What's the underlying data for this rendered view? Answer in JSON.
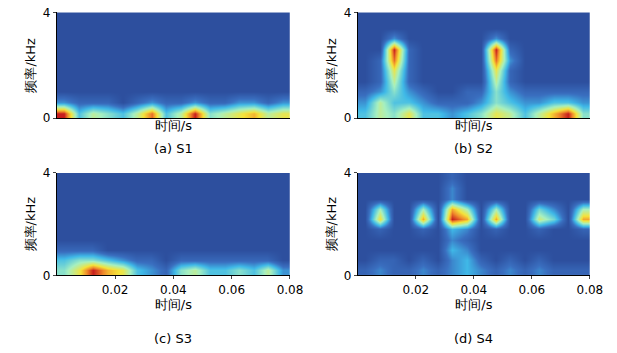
{
  "chart_data": [
    {
      "type": "heatmap",
      "title": "(a) S1",
      "x_label": "时间/s",
      "y_label": "频率/kHz",
      "xlim": [
        0,
        0.08
      ],
      "ylim": [
        0,
        4
      ],
      "yticks": [
        0,
        4
      ],
      "tick_labels": "y",
      "x": [
        0.0025,
        0.0075,
        0.0125,
        0.0175,
        0.0225,
        0.0275,
        0.0325,
        0.0375,
        0.0425,
        0.0475,
        0.0525,
        0.0575,
        0.0625,
        0.0675,
        0.0725,
        0.0775
      ],
      "y": [
        0.2,
        0.6,
        1.0,
        1.4,
        1.8,
        2.2,
        2.6,
        3.0,
        3.4,
        3.8
      ],
      "z": [
        [
          9,
          3,
          5,
          4,
          3,
          5,
          8,
          3,
          5,
          9,
          4,
          5,
          6,
          7,
          5,
          6
        ],
        [
          2,
          1,
          1,
          1,
          0,
          1,
          2,
          1,
          1,
          2,
          1,
          1,
          2,
          2,
          1,
          2
        ],
        [
          0,
          0,
          0,
          0,
          0,
          0,
          0,
          0,
          0,
          0,
          0,
          0,
          0,
          0,
          0,
          0
        ],
        [
          0,
          0,
          0,
          0,
          0,
          0,
          0,
          0,
          0,
          0,
          0,
          0,
          0,
          0,
          0,
          0
        ],
        [
          0,
          0,
          0,
          0,
          0,
          0,
          0,
          0,
          0,
          0,
          0,
          0,
          0,
          0,
          0,
          0
        ],
        [
          0,
          0,
          0,
          0,
          0,
          0,
          0,
          0,
          0,
          0,
          0,
          0,
          0,
          0,
          0,
          0
        ],
        [
          0,
          0,
          0,
          0,
          0,
          0,
          0,
          0,
          0,
          0,
          0,
          0,
          0,
          0,
          0,
          0
        ],
        [
          0,
          0,
          0,
          0,
          0,
          0,
          0,
          0,
          0,
          0,
          0,
          0,
          0,
          0,
          0,
          0
        ],
        [
          0,
          0,
          0,
          0,
          0,
          0,
          0,
          0,
          0,
          0,
          0,
          0,
          0,
          0,
          0,
          0
        ],
        [
          0,
          0,
          0,
          0,
          0,
          0,
          0,
          0,
          0,
          0,
          0,
          0,
          0,
          0,
          0,
          0
        ]
      ]
    },
    {
      "type": "heatmap",
      "title": "(b) S2",
      "x_label": "时间/s",
      "y_label": "频率/kHz",
      "xlim": [
        0,
        0.08
      ],
      "ylim": [
        0,
        4
      ],
      "yticks": [
        0,
        4
      ],
      "tick_labels": "y",
      "x": [
        0.0025,
        0.0075,
        0.0125,
        0.0175,
        0.0225,
        0.0275,
        0.0325,
        0.0375,
        0.0425,
        0.0475,
        0.0525,
        0.0575,
        0.0625,
        0.0675,
        0.0725,
        0.0775
      ],
      "y": [
        0.2,
        0.6,
        1.0,
        1.4,
        1.8,
        2.2,
        2.6,
        3.0,
        3.4,
        3.8
      ],
      "z": [
        [
          3,
          5,
          4,
          6,
          3,
          3,
          2,
          3,
          4,
          6,
          5,
          3,
          5,
          7,
          9,
          4
        ],
        [
          2,
          5,
          3,
          3,
          2,
          1,
          1,
          1,
          2,
          4,
          3,
          2,
          2,
          3,
          3,
          2
        ],
        [
          1,
          2,
          4,
          2,
          1,
          0,
          0,
          1,
          1,
          4,
          2,
          1,
          1,
          1,
          1,
          1
        ],
        [
          0,
          1,
          5,
          1,
          0,
          0,
          0,
          0,
          0,
          5,
          1,
          0,
          0,
          0,
          0,
          0
        ],
        [
          0,
          1,
          6,
          1,
          0,
          0,
          0,
          0,
          0,
          6,
          1,
          0,
          0,
          0,
          0,
          0
        ],
        [
          0,
          1,
          8,
          1,
          0,
          0,
          0,
          0,
          0,
          8,
          2,
          0,
          0,
          0,
          0,
          0
        ],
        [
          0,
          0,
          9,
          1,
          0,
          0,
          0,
          0,
          0,
          9,
          1,
          0,
          0,
          0,
          0,
          0
        ],
        [
          0,
          0,
          2,
          0,
          0,
          0,
          0,
          0,
          0,
          2,
          0,
          0,
          0,
          0,
          0,
          0
        ],
        [
          0,
          0,
          0,
          0,
          0,
          0,
          0,
          0,
          0,
          0,
          0,
          0,
          0,
          0,
          0,
          0
        ],
        [
          0,
          0,
          0,
          0,
          0,
          0,
          0,
          0,
          0,
          0,
          0,
          0,
          0,
          0,
          0,
          0
        ]
      ]
    },
    {
      "type": "heatmap",
      "title": "(c) S3",
      "x_label": "时间/s",
      "y_label": "频率/kHz",
      "xlim": [
        0,
        0.08
      ],
      "ylim": [
        0,
        4
      ],
      "xticks": [
        0.02,
        0.04,
        0.06,
        0.08
      ],
      "yticks": [
        0,
        4
      ],
      "x": [
        0.0025,
        0.0075,
        0.0125,
        0.0175,
        0.0225,
        0.0275,
        0.0325,
        0.0375,
        0.0425,
        0.0475,
        0.0525,
        0.0575,
        0.0625,
        0.0675,
        0.0725,
        0.0775
      ],
      "y": [
        0.2,
        0.6,
        1.0,
        1.4,
        1.8,
        2.2,
        2.6,
        3.0,
        3.4,
        3.8
      ],
      "z": [
        [
          4,
          6,
          9,
          7,
          6,
          3,
          2,
          1,
          4,
          5,
          3,
          3,
          4,
          3,
          5,
          2
        ],
        [
          3,
          4,
          4,
          3,
          2,
          1,
          1,
          0,
          1,
          1,
          1,
          1,
          1,
          1,
          1,
          0
        ],
        [
          1,
          1,
          1,
          0,
          0,
          0,
          0,
          0,
          0,
          0,
          0,
          0,
          0,
          0,
          0,
          0
        ],
        [
          0,
          0,
          0,
          0,
          0,
          0,
          0,
          0,
          0,
          0,
          0,
          0,
          0,
          0,
          0,
          0
        ],
        [
          0,
          0,
          0,
          0,
          0,
          0,
          0,
          0,
          0,
          0,
          0,
          0,
          0,
          0,
          0,
          0
        ],
        [
          0,
          0,
          0,
          0,
          0,
          0,
          0,
          0,
          0,
          0,
          0,
          0,
          0,
          0,
          0,
          0
        ],
        [
          0,
          0,
          0,
          0,
          0,
          0,
          0,
          0,
          0,
          0,
          0,
          0,
          0,
          0,
          0,
          0
        ],
        [
          0,
          0,
          0,
          0,
          0,
          0,
          0,
          0,
          0,
          0,
          0,
          0,
          0,
          0,
          0,
          0
        ],
        [
          0,
          0,
          0,
          0,
          0,
          0,
          0,
          0,
          0,
          0,
          0,
          0,
          0,
          0,
          0,
          0
        ],
        [
          0,
          0,
          0,
          0,
          0,
          0,
          0,
          0,
          0,
          0,
          0,
          0,
          0,
          0,
          0,
          0
        ]
      ]
    },
    {
      "type": "heatmap",
      "title": "(d) S4",
      "x_label": "时间/s",
      "y_label": "频率/kHz",
      "xlim": [
        0,
        0.08
      ],
      "ylim": [
        0,
        4
      ],
      "xticks": [
        0.02,
        0.04,
        0.06,
        0.08
      ],
      "yticks": [
        0,
        4
      ],
      "x": [
        0.0025,
        0.0075,
        0.0125,
        0.0175,
        0.0225,
        0.0275,
        0.0325,
        0.0375,
        0.0425,
        0.0475,
        0.0525,
        0.0575,
        0.0625,
        0.0675,
        0.0725,
        0.0775
      ],
      "y": [
        0.2,
        0.6,
        1.0,
        1.4,
        1.8,
        2.2,
        2.6,
        3.0,
        3.4,
        3.8
      ],
      "z": [
        [
          1,
          2,
          1,
          1,
          2,
          1,
          2,
          3,
          2,
          1,
          2,
          1,
          2,
          1,
          1,
          1
        ],
        [
          0,
          1,
          1,
          0,
          1,
          0,
          2,
          3,
          1,
          0,
          1,
          0,
          1,
          0,
          0,
          0
        ],
        [
          0,
          0,
          0,
          0,
          0,
          0,
          3,
          2,
          0,
          0,
          0,
          0,
          0,
          0,
          0,
          0
        ],
        [
          0,
          0,
          0,
          0,
          0,
          0,
          2,
          1,
          0,
          0,
          0,
          0,
          0,
          0,
          0,
          0
        ],
        [
          0,
          1,
          0,
          0,
          1,
          0,
          3,
          2,
          0,
          1,
          0,
          0,
          1,
          0,
          0,
          1
        ],
        [
          0,
          7,
          0,
          0,
          8,
          0,
          10,
          8,
          0,
          8,
          0,
          0,
          6,
          4,
          0,
          8
        ],
        [
          0,
          5,
          0,
          0,
          5,
          0,
          8,
          5,
          0,
          5,
          0,
          0,
          4,
          2,
          0,
          5
        ],
        [
          0,
          0,
          0,
          0,
          0,
          0,
          2,
          0,
          0,
          0,
          0,
          0,
          0,
          0,
          0,
          0
        ],
        [
          0,
          0,
          0,
          0,
          0,
          0,
          2,
          0,
          0,
          0,
          0,
          0,
          0,
          0,
          0,
          0
        ],
        [
          0,
          0,
          0,
          0,
          0,
          0,
          1,
          0,
          0,
          0,
          0,
          0,
          0,
          0,
          0,
          0
        ]
      ]
    }
  ]
}
